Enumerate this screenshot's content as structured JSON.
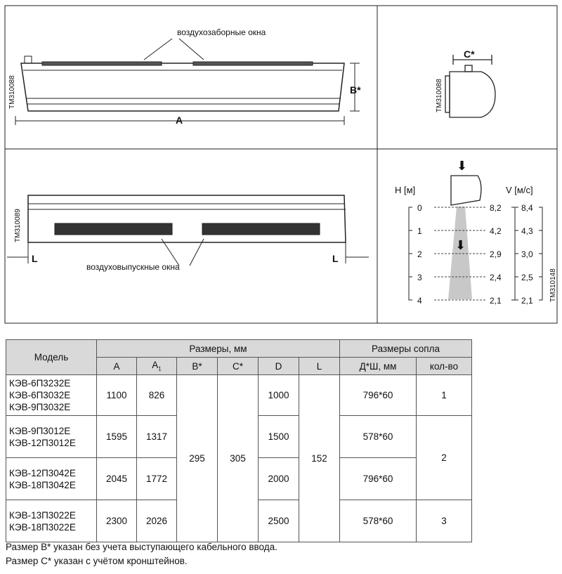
{
  "drawings": {
    "air_intake_label": "воздухозаборные окна",
    "air_outlet_label": "воздуховыпускные окна",
    "dim_A": "A",
    "dim_B": "B*",
    "dim_C": "C*",
    "dim_L": "L",
    "code_front": "TM310088",
    "code_side": "TM310088",
    "code_bottom": "TM310089",
    "code_chart": "TM310148",
    "H_label": "H [м]",
    "V_label": "V [м/с]",
    "H_values": [
      "0",
      "1",
      "2",
      "3",
      "4"
    ],
    "V1_values": [
      "8,2",
      "4,2",
      "2,9",
      "2,4",
      "2,1"
    ],
    "V2_values": [
      "8,4",
      "4,3",
      "3,0",
      "2,5",
      "2,1"
    ]
  },
  "table": {
    "h_model": "Модель",
    "h_sizes": "Размеры, мм",
    "h_nozzle": "Размеры сопла",
    "cols": [
      "A",
      "A",
      "B*",
      "C*",
      "D",
      "L",
      "Д*Ш, мм",
      "кол-во"
    ],
    "a1_sub": "1",
    "B": "295",
    "C": "305",
    "L": "152",
    "qty_2": "2",
    "rows": [
      {
        "models": [
          "КЭВ-6П3232Е",
          "КЭВ-6П3032Е",
          "КЭВ-9П3032Е"
        ],
        "A": "1100",
        "A1": "826",
        "D": "1000",
        "nozzle": "796*60",
        "qty": "1"
      },
      {
        "models": [
          "КЭВ-9П3012Е",
          "КЭВ-12П3012Е"
        ],
        "A": "1595",
        "A1": "1317",
        "D": "1500",
        "nozzle": "578*60"
      },
      {
        "models": [
          "КЭВ-12П3042Е",
          "КЭВ-18П3042Е"
        ],
        "A": "2045",
        "A1": "1772",
        "D": "2000",
        "nozzle": "796*60"
      },
      {
        "models": [
          "КЭВ-13П3022Е",
          "КЭВ-18П3022Е"
        ],
        "A": "2300",
        "A1": "2026",
        "D": "2500",
        "nozzle": "578*60",
        "qty": "3"
      }
    ]
  },
  "footnotes": [
    "Размер B* указан без учета выступающего кабельного ввода.",
    "Размер C* указан с учётом кронштейнов."
  ]
}
